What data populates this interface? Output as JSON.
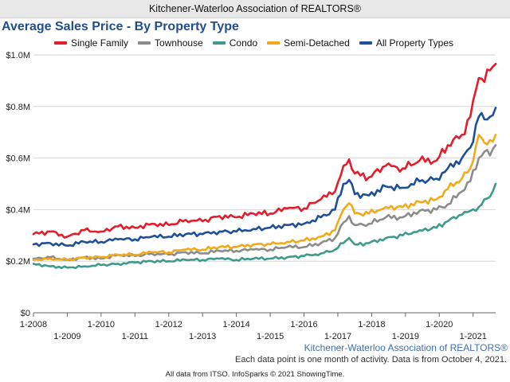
{
  "header": {
    "title": "Kitchener-Waterloo Association of REALTORS®"
  },
  "footer": {
    "source_logo": "Kitchener-Waterloo Association of REALTORS®",
    "note": "Each data point is one month of activity. Data is from October 4, 2021.",
    "credit": "All data from ITSO. InfoSparks © 2021 ShowingTime."
  },
  "chart_data": {
    "type": "line",
    "title": "Average Sales Price - By Property Type",
    "xlabel": "",
    "ylabel": "",
    "ylim": [
      0,
      1000000
    ],
    "yticks": [
      0,
      200000,
      400000,
      600000,
      800000,
      1000000
    ],
    "ytick_labels": [
      "$0",
      "$0.2M",
      "$0.4M",
      "$0.6M",
      "$0.8M",
      "$1.0M"
    ],
    "x_range": [
      "2008-01",
      "2021-09"
    ],
    "xtick_labels": [
      "1-2008",
      "1-2009",
      "1-2010",
      "1-2011",
      "1-2012",
      "1-2013",
      "1-2014",
      "1-2015",
      "1-2016",
      "1-2017",
      "1-2018",
      "1-2019",
      "1-2020",
      "1-2021"
    ],
    "grid": true,
    "legend": "top",
    "series": [
      {
        "name": "Single Family",
        "color": "#e31d2b",
        "points": [
          [
            "2008-01",
            305000
          ],
          [
            "2008-07",
            315000
          ],
          [
            "2009-01",
            295000
          ],
          [
            "2009-07",
            320000
          ],
          [
            "2010-01",
            315000
          ],
          [
            "2010-07",
            335000
          ],
          [
            "2011-01",
            330000
          ],
          [
            "2011-07",
            345000
          ],
          [
            "2012-01",
            340000
          ],
          [
            "2012-07",
            360000
          ],
          [
            "2013-01",
            355000
          ],
          [
            "2013-07",
            375000
          ],
          [
            "2014-01",
            370000
          ],
          [
            "2014-07",
            385000
          ],
          [
            "2015-01",
            385000
          ],
          [
            "2015-07",
            405000
          ],
          [
            "2016-01",
            405000
          ],
          [
            "2016-07",
            440000
          ],
          [
            "2016-12",
            470000
          ],
          [
            "2017-03",
            570000
          ],
          [
            "2017-05",
            595000
          ],
          [
            "2017-07",
            540000
          ],
          [
            "2017-12",
            525000
          ],
          [
            "2018-06",
            570000
          ],
          [
            "2018-12",
            560000
          ],
          [
            "2019-06",
            590000
          ],
          [
            "2019-12",
            590000
          ],
          [
            "2020-04",
            650000
          ],
          [
            "2020-09",
            690000
          ],
          [
            "2020-12",
            760000
          ],
          [
            "2021-03",
            910000
          ],
          [
            "2021-05",
            895000
          ],
          [
            "2021-07",
            940000
          ],
          [
            "2021-09",
            965000
          ]
        ]
      },
      {
        "name": "Townhouse",
        "color": "#8c8c8c",
        "points": [
          [
            "2008-01",
            210000
          ],
          [
            "2008-07",
            215000
          ],
          [
            "2009-01",
            205000
          ],
          [
            "2009-07",
            215000
          ],
          [
            "2010-01",
            210000
          ],
          [
            "2010-07",
            225000
          ],
          [
            "2011-01",
            220000
          ],
          [
            "2011-07",
            230000
          ],
          [
            "2012-01",
            225000
          ],
          [
            "2012-07",
            235000
          ],
          [
            "2013-01",
            230000
          ],
          [
            "2013-07",
            240000
          ],
          [
            "2014-01",
            240000
          ],
          [
            "2014-07",
            245000
          ],
          [
            "2015-01",
            245000
          ],
          [
            "2015-07",
            255000
          ],
          [
            "2016-01",
            255000
          ],
          [
            "2016-07",
            270000
          ],
          [
            "2016-12",
            290000
          ],
          [
            "2017-03",
            350000
          ],
          [
            "2017-05",
            375000
          ],
          [
            "2017-07",
            340000
          ],
          [
            "2017-12",
            345000
          ],
          [
            "2018-06",
            370000
          ],
          [
            "2018-12",
            370000
          ],
          [
            "2019-06",
            395000
          ],
          [
            "2019-12",
            400000
          ],
          [
            "2020-04",
            420000
          ],
          [
            "2020-09",
            470000
          ],
          [
            "2020-12",
            510000
          ],
          [
            "2021-03",
            600000
          ],
          [
            "2021-05",
            625000
          ],
          [
            "2021-07",
            610000
          ],
          [
            "2021-09",
            650000
          ]
        ]
      },
      {
        "name": "Condo",
        "color": "#3e9a8a",
        "points": [
          [
            "2008-01",
            190000
          ],
          [
            "2008-07",
            180000
          ],
          [
            "2009-01",
            175000
          ],
          [
            "2009-07",
            180000
          ],
          [
            "2010-01",
            185000
          ],
          [
            "2010-07",
            190000
          ],
          [
            "2011-01",
            195000
          ],
          [
            "2011-07",
            200000
          ],
          [
            "2012-01",
            200000
          ],
          [
            "2012-07",
            205000
          ],
          [
            "2013-01",
            205000
          ],
          [
            "2013-07",
            210000
          ],
          [
            "2014-01",
            205000
          ],
          [
            "2014-07",
            210000
          ],
          [
            "2015-01",
            210000
          ],
          [
            "2015-07",
            215000
          ],
          [
            "2016-01",
            220000
          ],
          [
            "2016-07",
            230000
          ],
          [
            "2016-12",
            245000
          ],
          [
            "2017-03",
            270000
          ],
          [
            "2017-05",
            290000
          ],
          [
            "2017-07",
            265000
          ],
          [
            "2017-12",
            270000
          ],
          [
            "2018-06",
            290000
          ],
          [
            "2018-12",
            300000
          ],
          [
            "2019-06",
            320000
          ],
          [
            "2019-12",
            330000
          ],
          [
            "2020-04",
            355000
          ],
          [
            "2020-09",
            380000
          ],
          [
            "2020-12",
            395000
          ],
          [
            "2021-03",
            410000
          ],
          [
            "2021-05",
            440000
          ],
          [
            "2021-07",
            450000
          ],
          [
            "2021-09",
            500000
          ]
        ]
      },
      {
        "name": "Semi-Detached",
        "color": "#f2a91a",
        "points": [
          [
            "2008-01",
            205000
          ],
          [
            "2008-07",
            210000
          ],
          [
            "2009-01",
            205000
          ],
          [
            "2009-07",
            215000
          ],
          [
            "2010-01",
            215000
          ],
          [
            "2010-07",
            225000
          ],
          [
            "2011-01",
            225000
          ],
          [
            "2011-07",
            235000
          ],
          [
            "2012-01",
            235000
          ],
          [
            "2012-07",
            245000
          ],
          [
            "2013-01",
            245000
          ],
          [
            "2013-07",
            255000
          ],
          [
            "2014-01",
            255000
          ],
          [
            "2014-07",
            265000
          ],
          [
            "2015-01",
            265000
          ],
          [
            "2015-07",
            275000
          ],
          [
            "2016-01",
            280000
          ],
          [
            "2016-07",
            295000
          ],
          [
            "2016-12",
            320000
          ],
          [
            "2017-03",
            400000
          ],
          [
            "2017-05",
            425000
          ],
          [
            "2017-07",
            385000
          ],
          [
            "2017-12",
            385000
          ],
          [
            "2018-06",
            410000
          ],
          [
            "2018-12",
            410000
          ],
          [
            "2019-06",
            430000
          ],
          [
            "2019-12",
            440000
          ],
          [
            "2020-04",
            480000
          ],
          [
            "2020-09",
            520000
          ],
          [
            "2020-12",
            560000
          ],
          [
            "2021-03",
            690000
          ],
          [
            "2021-05",
            660000
          ],
          [
            "2021-07",
            670000
          ],
          [
            "2021-09",
            690000
          ]
        ]
      },
      {
        "name": "All Property Types",
        "color": "#1d4f9a",
        "points": [
          [
            "2008-01",
            265000
          ],
          [
            "2008-07",
            270000
          ],
          [
            "2009-01",
            260000
          ],
          [
            "2009-07",
            275000
          ],
          [
            "2010-01",
            275000
          ],
          [
            "2010-07",
            285000
          ],
          [
            "2011-01",
            285000
          ],
          [
            "2011-07",
            295000
          ],
          [
            "2012-01",
            295000
          ],
          [
            "2012-07",
            305000
          ],
          [
            "2013-01",
            305000
          ],
          [
            "2013-07",
            315000
          ],
          [
            "2014-01",
            315000
          ],
          [
            "2014-07",
            325000
          ],
          [
            "2015-01",
            330000
          ],
          [
            "2015-07",
            340000
          ],
          [
            "2016-01",
            345000
          ],
          [
            "2016-07",
            370000
          ],
          [
            "2016-12",
            400000
          ],
          [
            "2017-03",
            500000
          ],
          [
            "2017-05",
            515000
          ],
          [
            "2017-07",
            460000
          ],
          [
            "2017-12",
            455000
          ],
          [
            "2018-06",
            490000
          ],
          [
            "2018-12",
            485000
          ],
          [
            "2019-06",
            510000
          ],
          [
            "2019-12",
            520000
          ],
          [
            "2020-04",
            560000
          ],
          [
            "2020-09",
            600000
          ],
          [
            "2020-12",
            640000
          ],
          [
            "2021-03",
            760000
          ],
          [
            "2021-05",
            750000
          ],
          [
            "2021-07",
            760000
          ],
          [
            "2021-09",
            795000
          ]
        ]
      }
    ]
  }
}
